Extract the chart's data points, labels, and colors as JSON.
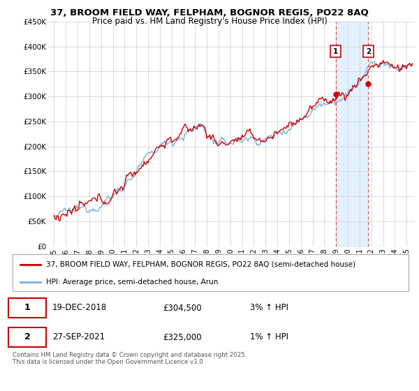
{
  "title": "37, BROOM FIELD WAY, FELPHAM, BOGNOR REGIS, PO22 8AQ",
  "subtitle": "Price paid vs. HM Land Registry's House Price Index (HPI)",
  "legend_line1": "37, BROOM FIELD WAY, FELPHAM, BOGNOR REGIS, PO22 8AQ (semi-detached house)",
  "legend_line2": "HPI: Average price, semi-detached house, Arun",
  "ylim": [
    0,
    450000
  ],
  "yticks": [
    0,
    50000,
    100000,
    150000,
    200000,
    250000,
    300000,
    350000,
    400000,
    450000
  ],
  "ytick_labels": [
    "£0",
    "£50K",
    "£100K",
    "£150K",
    "£200K",
    "£250K",
    "£300K",
    "£350K",
    "£400K",
    "£450K"
  ],
  "hpi_color": "#7aaed4",
  "price_color": "#cc0000",
  "shade_color": "#ddeeff",
  "vline_color": "#dd4444",
  "background_color": "#ffffff",
  "grid_color": "#cccccc",
  "annotation1": {
    "label": "1",
    "date": "19-DEC-2018",
    "price": "£304,500",
    "hpi": "3% ↑ HPI"
  },
  "annotation2": {
    "label": "2",
    "date": "27-SEP-2021",
    "price": "£325,000",
    "hpi": "1% ↑ HPI"
  },
  "footer": "Contains HM Land Registry data © Crown copyright and database right 2025.\nThis data is licensed under the Open Government Licence v3.0.",
  "sale1_x": 2018.96,
  "sale1_y": 304500,
  "sale2_x": 2021.74,
  "sale2_y": 325000,
  "xlim_start": 1994.5,
  "xlim_end": 2025.7
}
